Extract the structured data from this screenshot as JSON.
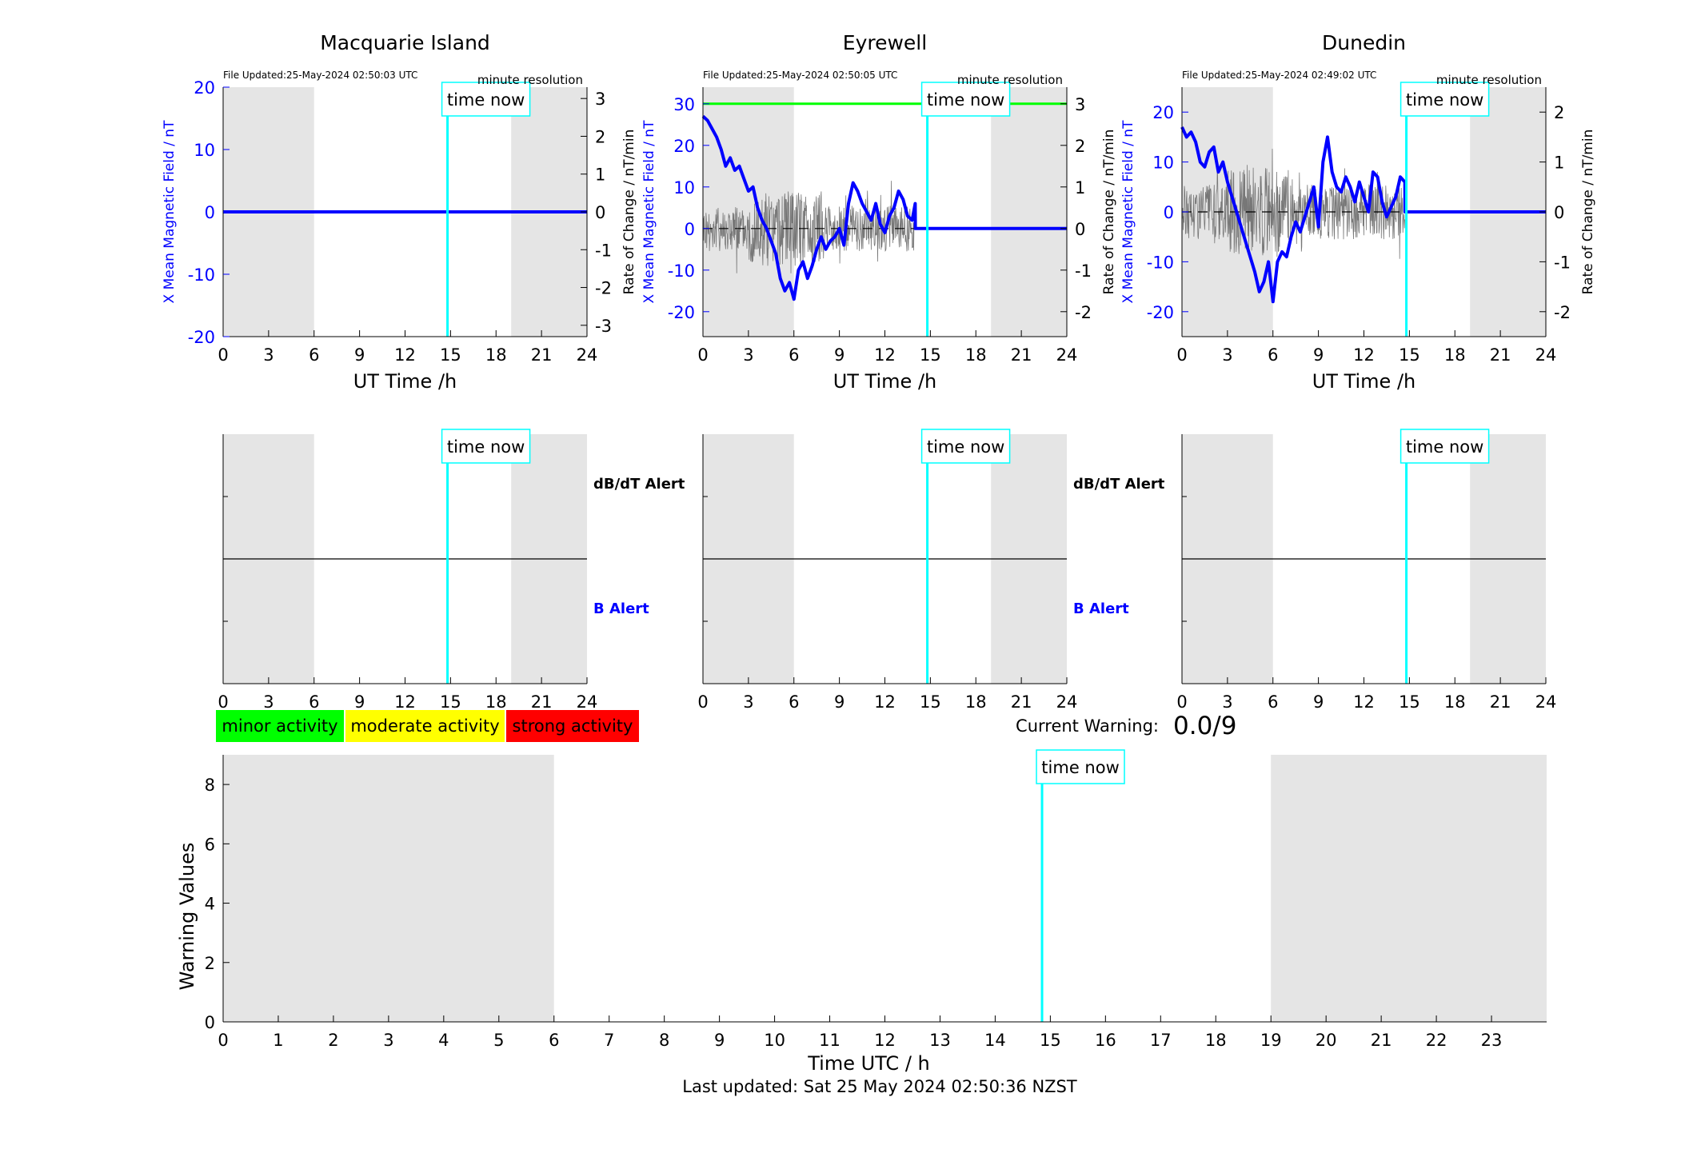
{
  "footer": "Last updated: Sat 25 May 2024 02:50:36 NZST",
  "legend": [
    {
      "label": "minor activity",
      "color": "#00ff00"
    },
    {
      "label": "moderate activity",
      "color": "#ffff00"
    },
    {
      "label": "strong activity",
      "color": "#ff0000"
    }
  ],
  "current_warning": {
    "label": "Current Warning:",
    "value": "0.0/9"
  },
  "colors": {
    "field": "#0000ff",
    "night_shading": "#e5e5e5",
    "time_now": "#00ffff",
    "threshold": "#00ff00",
    "rate": "#000000"
  },
  "chart_data": [
    {
      "type": "line",
      "title": "Macquarie Island",
      "file_updated": "File Updated:25-May-2024 02:50:03 UTC",
      "resolution": "minute resolution",
      "xlabel": "UT Time /h",
      "ylabel": "X Mean Magnetic Field / nT",
      "ylabel_right": "Rate of Change / nT/min",
      "xlim": [
        0,
        24
      ],
      "xticks": [
        0,
        3,
        6,
        9,
        12,
        15,
        18,
        21,
        24
      ],
      "ylim": [
        -20,
        20
      ],
      "yticks": [
        -20,
        -10,
        0,
        10,
        20
      ],
      "ylim_right": [
        -3.3,
        3.3
      ],
      "yticks_right": [
        -3,
        -2,
        -1,
        0,
        1,
        2,
        3
      ],
      "night_shading": [
        [
          0,
          6
        ],
        [
          19,
          24
        ]
      ],
      "time_now": 14.8,
      "time_now_label": "time now",
      "series": [
        {
          "x": [
            0,
            24
          ],
          "y": [
            0,
            0
          ]
        }
      ]
    },
    {
      "type": "line",
      "title": "Eyrewell",
      "file_updated": "File Updated:25-May-2024 02:50:05 UTC",
      "resolution": "minute resolution",
      "xlabel": "UT Time /h",
      "ylabel": "X Mean Magnetic Field / nT",
      "ylabel_right": "Rate of Change / nT/min",
      "xlim": [
        0,
        24
      ],
      "xticks": [
        0,
        3,
        6,
        9,
        12,
        15,
        18,
        21,
        24
      ],
      "ylim": [
        -26,
        34
      ],
      "yticks": [
        -20,
        -10,
        0,
        10,
        20,
        30
      ],
      "ylim_right": [
        -2.6,
        3.4
      ],
      "yticks_right": [
        -2,
        -1,
        0,
        1,
        2,
        3
      ],
      "threshold": 30,
      "night_shading": [
        [
          0,
          6
        ],
        [
          19,
          24
        ]
      ],
      "time_now": 14.8,
      "time_now_label": "time now",
      "series": [
        {
          "x": [
            0,
            0.3,
            0.6,
            0.9,
            1.2,
            1.5,
            1.8,
            2.1,
            2.4,
            2.7,
            3.0,
            3.3,
            3.6,
            3.9,
            4.2,
            4.5,
            4.8,
            5.1,
            5.4,
            5.7,
            6.0,
            6.3,
            6.6,
            6.9,
            7.2,
            7.5,
            7.8,
            8.1,
            8.4,
            8.7,
            9.0,
            9.3,
            9.6,
            9.9,
            10.2,
            10.5,
            10.8,
            11.1,
            11.4,
            11.7,
            12.0,
            12.3,
            12.6,
            12.9,
            13.2,
            13.5,
            13.8,
            14.0,
            14.01,
            24
          ],
          "y": [
            27,
            26,
            24,
            22,
            19,
            15,
            17,
            14,
            15,
            12,
            9,
            10,
            5,
            2,
            0,
            -3,
            -6,
            -12,
            -15,
            -13,
            -17,
            -10,
            -8,
            -12,
            -9,
            -5,
            -2,
            -5,
            -3,
            -2,
            0,
            -4,
            6,
            11,
            9,
            6,
            4,
            2,
            6,
            1,
            -1,
            3,
            5,
            9,
            7,
            3,
            2,
            6,
            0,
            0
          ]
        }
      ]
    },
    {
      "type": "line",
      "title": "Dunedin",
      "file_updated": "File Updated:25-May-2024 02:49:02 UTC",
      "resolution": "minute resolution",
      "xlabel": "UT Time /h",
      "ylabel": "X Mean Magnetic Field / nT",
      "ylabel_right": "Rate of Change / nT/min",
      "xlim": [
        0,
        24
      ],
      "xticks": [
        0,
        3,
        6,
        9,
        12,
        15,
        18,
        21,
        24
      ],
      "ylim": [
        -25,
        25
      ],
      "yticks": [
        -20,
        -10,
        0,
        10,
        20
      ],
      "ylim_right": [
        -2.5,
        2.5
      ],
      "yticks_right": [
        -2,
        -1,
        0,
        1,
        2
      ],
      "night_shading": [
        [
          0,
          6
        ],
        [
          19,
          24
        ]
      ],
      "time_now": 14.8,
      "time_now_label": "time now",
      "series": [
        {
          "x": [
            0,
            0.3,
            0.6,
            0.9,
            1.2,
            1.5,
            1.8,
            2.1,
            2.4,
            2.7,
            3.0,
            3.3,
            3.6,
            3.9,
            4.2,
            4.5,
            4.8,
            5.1,
            5.4,
            5.7,
            6.0,
            6.3,
            6.6,
            6.9,
            7.2,
            7.5,
            7.8,
            8.1,
            8.4,
            8.7,
            9.0,
            9.3,
            9.6,
            9.9,
            10.2,
            10.5,
            10.8,
            11.1,
            11.4,
            11.7,
            12.0,
            12.3,
            12.6,
            12.9,
            13.2,
            13.5,
            13.8,
            14.1,
            14.4,
            14.7,
            14.71,
            24
          ],
          "y": [
            17,
            15,
            16,
            14,
            10,
            9,
            12,
            13,
            8,
            10,
            6,
            3,
            0,
            -3,
            -6,
            -9,
            -12,
            -16,
            -14,
            -10,
            -18,
            -10,
            -8,
            -9,
            -5,
            -2,
            -4,
            -1,
            2,
            5,
            -3,
            10,
            15,
            8,
            5,
            4,
            7,
            5,
            2,
            6,
            3,
            0,
            8,
            7,
            2,
            -1,
            1,
            3,
            7,
            6,
            0,
            0
          ]
        }
      ]
    },
    {
      "type": "line",
      "alert_labels": [
        "dB/dT Alert",
        "B Alert"
      ],
      "xlim": [
        0,
        24
      ],
      "xticks": [
        0,
        3,
        6,
        9,
        12,
        15,
        18,
        21,
        24
      ],
      "night_shading": [
        [
          0,
          6
        ],
        [
          19,
          24
        ]
      ],
      "time_now": 14.8,
      "time_now_label": "time now"
    },
    {
      "type": "line",
      "alert_labels": [
        "dB/dT Alert",
        "B Alert"
      ],
      "xlim": [
        0,
        24
      ],
      "xticks": [
        0,
        3,
        6,
        9,
        12,
        15,
        18,
        21,
        24
      ],
      "night_shading": [
        [
          0,
          6
        ],
        [
          19,
          24
        ]
      ],
      "time_now": 14.8,
      "time_now_label": "time now"
    },
    {
      "type": "line",
      "xlim": [
        0,
        24
      ],
      "xticks": [
        0,
        3,
        6,
        9,
        12,
        15,
        18,
        21,
        24
      ],
      "night_shading": [
        [
          0,
          6
        ],
        [
          19,
          24
        ]
      ],
      "time_now": 14.8,
      "time_now_label": "time now"
    },
    {
      "type": "bar",
      "xlabel": "Time UTC / h",
      "ylabel": "Warning Values",
      "xlim": [
        0,
        24
      ],
      "xticks": [
        0,
        1,
        2,
        3,
        4,
        5,
        6,
        7,
        8,
        9,
        10,
        11,
        12,
        13,
        14,
        15,
        16,
        17,
        18,
        19,
        20,
        21,
        22,
        23
      ],
      "ylim": [
        0,
        9
      ],
      "yticks": [
        0,
        2,
        4,
        6,
        8
      ],
      "night_shading": [
        [
          0,
          6
        ],
        [
          19,
          24
        ]
      ],
      "time_now": 14.85,
      "time_now_label": "time now",
      "values": []
    }
  ]
}
